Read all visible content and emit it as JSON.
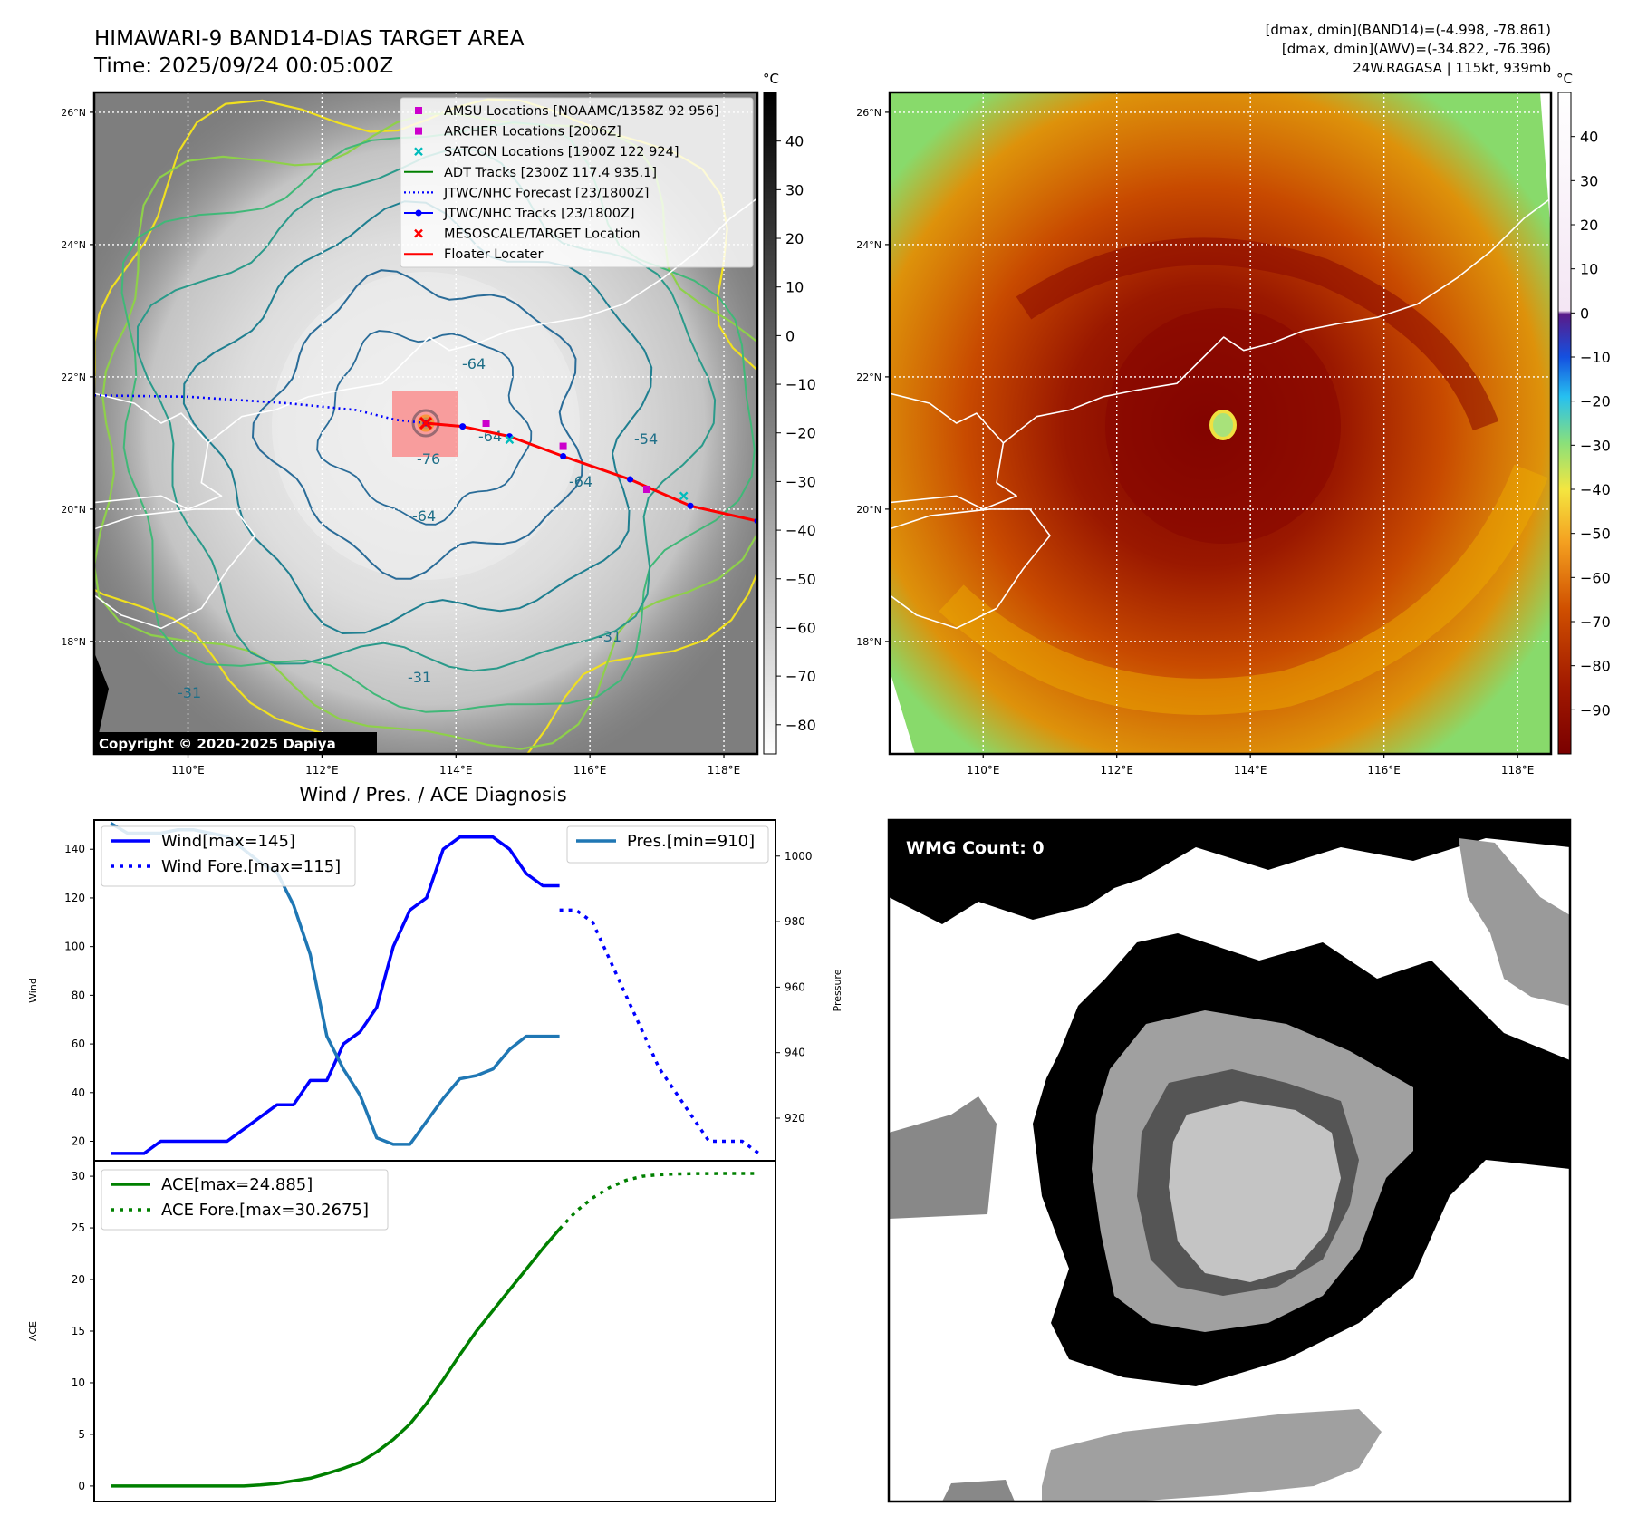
{
  "header": {
    "title": "HIMAWARI-9 BAND14-DIAS TARGET AREA",
    "time": "Time: 2025/09/24 00:05:00Z",
    "stats_line1": "[dmax, dmin](BAND14)=(-4.998, -78.861)",
    "stats_line2": "[dmax, dmin](AWV)=(-34.822, -76.396)",
    "stats_line3": "24W.RAGASA | 115kt, 939mb",
    "copyright": "Copyright © 2020-2025 Dapiya"
  },
  "maps": {
    "lat_ticks": [
      "26°N",
      "24°N",
      "22°N",
      "20°N",
      "18°N"
    ],
    "lon_ticks": [
      "110°E",
      "112°E",
      "114°E",
      "116°E",
      "118°E"
    ],
    "lat_values": [
      26,
      24,
      22,
      20,
      18
    ],
    "lon_values": [
      110,
      112,
      114,
      116,
      118
    ],
    "extent": {
      "lon": [
        108.6,
        118.5
      ],
      "lat": [
        16.3,
        26.3
      ]
    },
    "storm_center": {
      "lon": 113.55,
      "lat": 21.3
    },
    "contour_labels": [
      "-64",
      "-64",
      "-64",
      "-76",
      "-64",
      "-54",
      "-31",
      "-31",
      "-31"
    ]
  },
  "left_colorbar": {
    "unit": "°C",
    "ticks": [
      "40",
      "30",
      "20",
      "10",
      "0",
      "−10",
      "−20",
      "−30",
      "−40",
      "−50",
      "−60",
      "−70",
      "−80"
    ],
    "range": [
      -86,
      50
    ]
  },
  "right_colorbar": {
    "unit": "°C",
    "ticks": [
      "40",
      "30",
      "20",
      "10",
      "0",
      "−10",
      "−20",
      "−30",
      "−40",
      "−50",
      "−60",
      "−70",
      "−80",
      "−90"
    ],
    "range": [
      -100,
      50
    ]
  },
  "legend": {
    "items": [
      {
        "label": "AMSU Locations [NOAAMC/1358Z 92 956]",
        "color": "#cc00cc",
        "marker": "square"
      },
      {
        "label": "ARCHER Locations [2006Z]",
        "color": "#cc00cc",
        "marker": "square"
      },
      {
        "label": "SATCON Locations [1900Z 122 924]",
        "color": "#00bcbc",
        "marker": "x"
      },
      {
        "label": "ADT Tracks [2300Z 117.4 935.1]",
        "color": "#008000",
        "marker": "line"
      },
      {
        "label": "JTWC/NHC Forecast [23/1800Z]",
        "color": "#0000ff",
        "marker": "dotted"
      },
      {
        "label": "JTWC/NHC Tracks [23/1800Z]",
        "color": "#0000ff",
        "marker": "line-dot"
      },
      {
        "label": "MESOSCALE/TARGET Location",
        "color": "#ff0000",
        "marker": "x"
      },
      {
        "label": "Floater Locater",
        "color": "#ff0000",
        "marker": "line"
      }
    ]
  },
  "tracks": {
    "forecast": [
      [
        108.6,
        21.72
      ],
      [
        110.0,
        21.7
      ],
      [
        111.5,
        21.6
      ],
      [
        112.5,
        21.5
      ],
      [
        113.1,
        21.35
      ],
      [
        113.55,
        21.3
      ]
    ],
    "observed": [
      [
        118.5,
        19.82
      ],
      [
        117.5,
        20.05
      ],
      [
        116.6,
        20.45
      ],
      [
        115.6,
        20.8
      ],
      [
        114.8,
        21.1
      ],
      [
        114.1,
        21.25
      ],
      [
        113.55,
        21.3
      ]
    ],
    "amsu": [
      [
        114.45,
        21.3
      ],
      [
        115.6,
        20.95
      ],
      [
        116.85,
        20.3
      ]
    ],
    "satcon": [
      [
        114.8,
        21.05
      ],
      [
        117.4,
        20.2
      ]
    ]
  },
  "chart_data": [
    {
      "type": "line",
      "title": "Wind / Pres. / ACE Diagnosis",
      "ylabel": "Wind",
      "ylabel_right": "Pressure",
      "ylim": [
        12,
        152
      ],
      "ylim_right": [
        907,
        1011
      ],
      "xlim": [
        -1,
        40
      ],
      "yticks": [
        "140",
        "120",
        "100",
        "80",
        "60",
        "40",
        "20"
      ],
      "yticks_right": [
        "1000",
        "980",
        "960",
        "940",
        "920"
      ],
      "series": [
        {
          "name": "Wind[max=145]",
          "color": "#0000ff",
          "style": "solid",
          "x": [
            0,
            1,
            2,
            3,
            4,
            5,
            6,
            7,
            8,
            9,
            10,
            11,
            12,
            13,
            14,
            15,
            16,
            17,
            18,
            19,
            20,
            21,
            22,
            23,
            24,
            25,
            26,
            27
          ],
          "values": [
            15,
            15,
            15,
            20,
            20,
            20,
            20,
            20,
            25,
            30,
            35,
            35,
            45,
            45,
            60,
            65,
            75,
            100,
            115,
            120,
            140,
            145,
            145,
            145,
            140,
            130,
            125,
            125
          ]
        },
        {
          "name": "Wind Fore.[max=115]",
          "color": "#0000ff",
          "style": "dotted",
          "x": [
            27,
            28,
            29,
            30,
            31,
            32,
            33,
            34,
            35,
            36,
            37,
            38,
            39
          ],
          "values": [
            115,
            115,
            110,
            95,
            80,
            65,
            50,
            40,
            30,
            20,
            20,
            20,
            15
          ]
        },
        {
          "name": "Pres.[min=910]",
          "color": "#1f77b4",
          "style": "solid",
          "axis": "right",
          "x": [
            0,
            1,
            2,
            3,
            4,
            5,
            6,
            7,
            8,
            9,
            10,
            11,
            12,
            13,
            14,
            15,
            16,
            17,
            18,
            19,
            20,
            21,
            22,
            23,
            24,
            25,
            26,
            27
          ],
          "values": [
            1010,
            1007,
            1007,
            1007,
            1008,
            1008,
            1007,
            1006,
            1002,
            998,
            995,
            985,
            970,
            945,
            935,
            927,
            914,
            912,
            912,
            919,
            926,
            932,
            933,
            935,
            941,
            945,
            945,
            945
          ]
        }
      ]
    },
    {
      "type": "line",
      "ylabel": "ACE",
      "ylim": [
        -1.5,
        31.5
      ],
      "xlim": [
        -1,
        40
      ],
      "yticks": [
        "30",
        "25",
        "20",
        "15",
        "10",
        "5",
        "0"
      ],
      "series": [
        {
          "name": "ACE[max=24.885]",
          "color": "#008000",
          "style": "solid",
          "x": [
            0,
            1,
            2,
            3,
            4,
            5,
            6,
            7,
            8,
            9,
            10,
            11,
            12,
            13,
            14,
            15,
            16,
            17,
            18,
            19,
            20,
            21,
            22,
            23,
            24,
            25,
            26,
            27
          ],
          "values": [
            0,
            0,
            0,
            0,
            0,
            0,
            0,
            0,
            0,
            0.1,
            0.25,
            0.5,
            0.75,
            1.2,
            1.7,
            2.3,
            3.3,
            4.5,
            6,
            8,
            10.3,
            12.7,
            15,
            17,
            19,
            21,
            23,
            24.885
          ]
        },
        {
          "name": "ACE Fore.[max=30.2675]",
          "color": "#008000",
          "style": "dotted",
          "x": [
            27,
            28,
            29,
            30,
            31,
            32,
            33,
            34,
            35,
            36,
            37,
            38,
            39
          ],
          "values": [
            24.885,
            26.6,
            27.9,
            28.9,
            29.6,
            30.0,
            30.15,
            30.22,
            30.25,
            30.26,
            30.2675,
            30.2675,
            30.2675
          ]
        }
      ]
    }
  ],
  "wmg": {
    "label": "WMG Count: 0"
  }
}
